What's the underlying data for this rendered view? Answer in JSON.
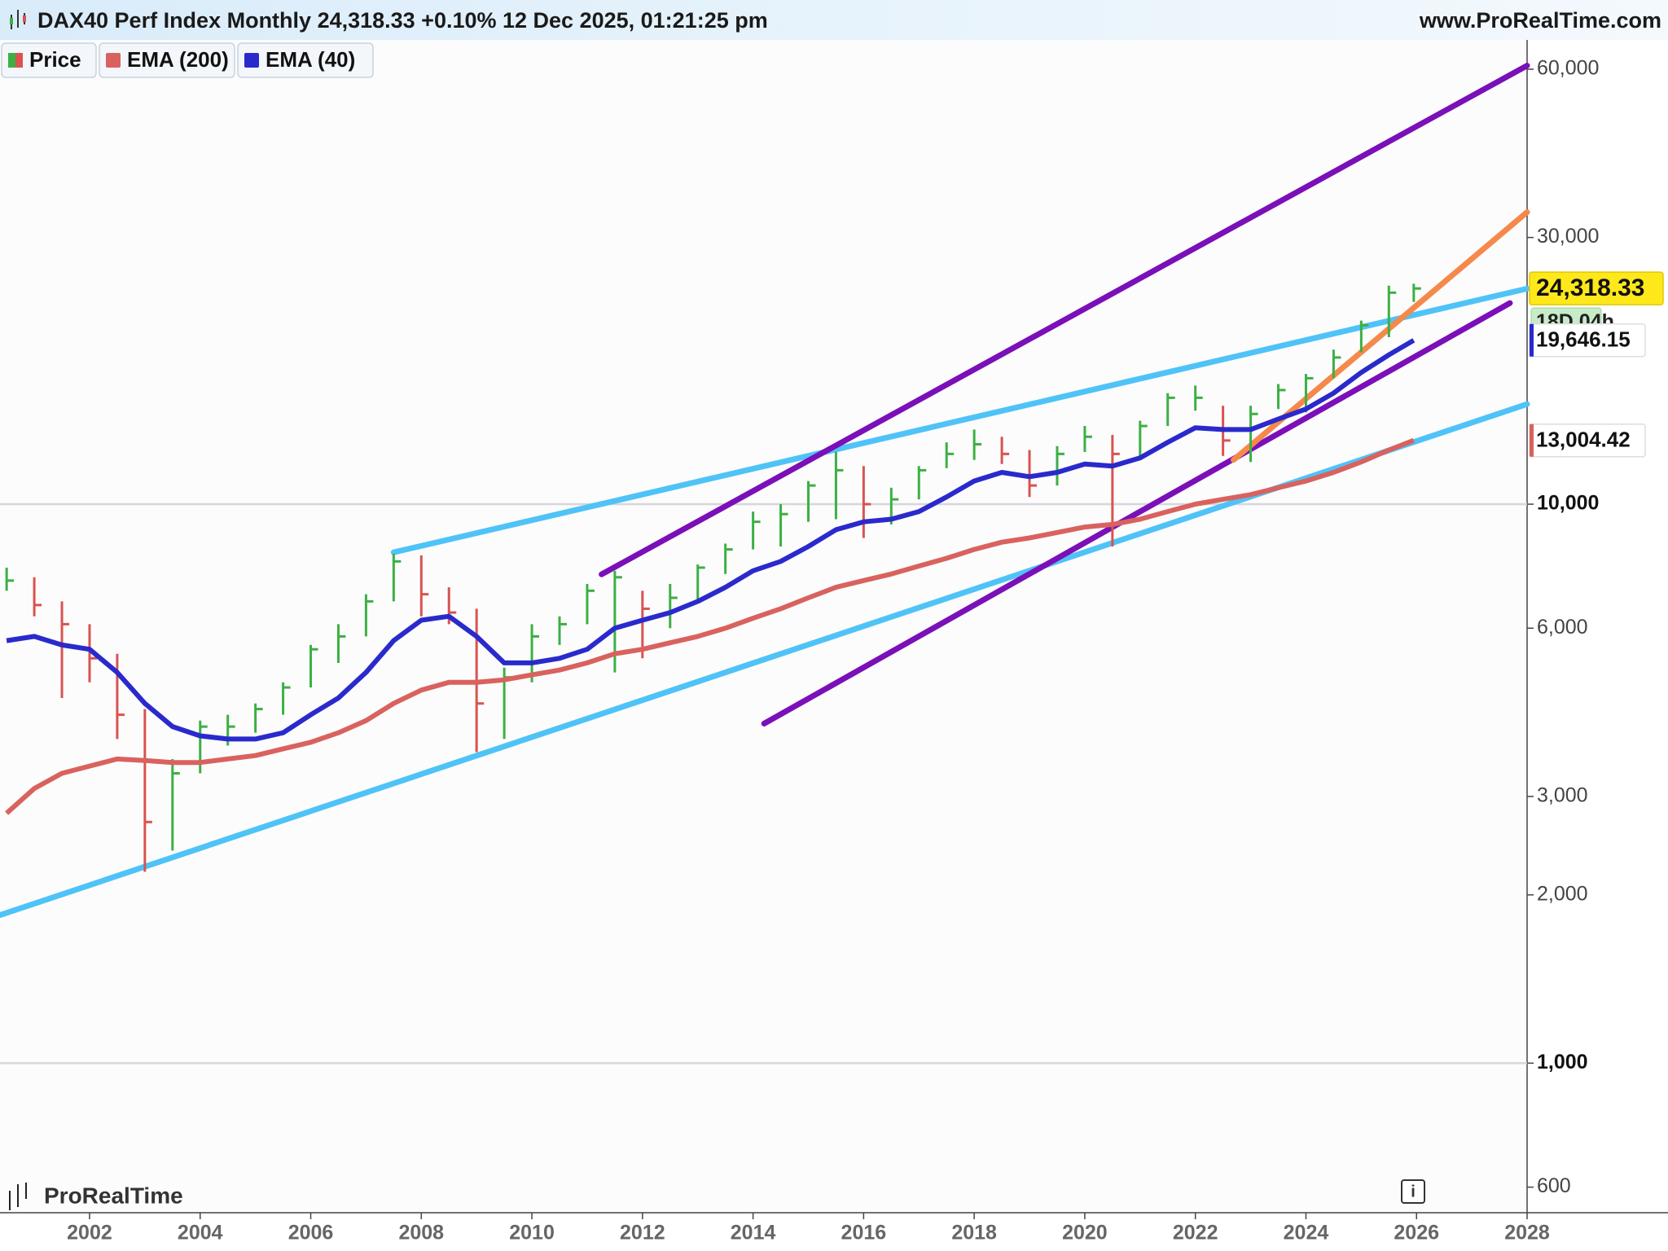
{
  "chart_data": {
    "type": "ohlc",
    "title": "DAX40 Perf Index Monthly 24,318.33 +0.10% 12 Dec 2025, 01:21:25 pm",
    "source": "www.ProRealTime.com",
    "watermark": "ProRealTime",
    "countdown": "18D 04h",
    "log_scale": true,
    "grid": true,
    "xlim": [
      2000.38,
      2028
    ],
    "xticks": [
      2002,
      2004,
      2006,
      2008,
      2010,
      2012,
      2014,
      2016,
      2018,
      2020,
      2022,
      2024,
      2026,
      2028
    ],
    "ylim": [
      540,
      67700
    ],
    "yticks": [
      {
        "value": 600,
        "label": "600"
      },
      {
        "value": 1000,
        "label": "1,000"
      },
      {
        "value": 2000,
        "label": "2,000"
      },
      {
        "value": 3000,
        "label": "3,000"
      },
      {
        "value": 6000,
        "label": "6,000"
      },
      {
        "value": 10000,
        "label": "10,000"
      },
      {
        "value": 30000,
        "label": "30,000"
      },
      {
        "value": 60000,
        "label": "60,000"
      }
    ],
    "x": [
      2000.5,
      2001.0,
      2001.5,
      2002.0,
      2002.5,
      2003.0,
      2003.5,
      2004.0,
      2004.5,
      2005.0,
      2005.5,
      2006.0,
      2006.5,
      2007.0,
      2007.5,
      2008.0,
      2008.5,
      2009.0,
      2009.5,
      2010.0,
      2010.5,
      2011.0,
      2011.5,
      2012.0,
      2012.5,
      2013.0,
      2013.5,
      2014.0,
      2014.5,
      2015.0,
      2015.5,
      2016.0,
      2016.5,
      2017.0,
      2017.5,
      2018.0,
      2018.5,
      2019.0,
      2019.5,
      2020.0,
      2020.5,
      2021.0,
      2021.5,
      2022.0,
      2022.5,
      2023.0,
      2023.5,
      2024.0,
      2024.5,
      2025.0,
      2025.5,
      2025.95
    ],
    "series": [
      {
        "name": "Price",
        "up_color": "#3cb043",
        "down_color": "#d9534f",
        "values": [
          7300,
          6600,
          6100,
          5300,
          4200,
          2700,
          3300,
          4000,
          4000,
          4300,
          4700,
          5500,
          5800,
          6700,
          7900,
          6900,
          6400,
          4400,
          4900,
          5800,
          6100,
          7000,
          7400,
          6500,
          6800,
          7700,
          8300,
          9300,
          9600,
          10800,
          11500,
          10000,
          10200,
          11500,
          12300,
          12800,
          12300,
          10800,
          12300,
          13200,
          12300,
          13800,
          15500,
          15500,
          13000,
          14500,
          16000,
          16800,
          18300,
          20900,
          23900,
          24318.33
        ],
        "high": [
          7700,
          7400,
          6700,
          6100,
          5400,
          4300,
          3500,
          4100,
          4200,
          4400,
          4800,
          5600,
          6100,
          6900,
          8150,
          8100,
          7100,
          6500,
          5100,
          6100,
          6300,
          7200,
          7600,
          7000,
          7200,
          7800,
          8500,
          9700,
          10000,
          11000,
          12400,
          11700,
          10700,
          11700,
          12900,
          13600,
          13200,
          12500,
          12700,
          13800,
          13300,
          14100,
          15800,
          16300,
          15000,
          15000,
          16400,
          17100,
          18900,
          21300,
          24600,
          24800
        ],
        "low": [
          7000,
          6300,
          4500,
          4800,
          3800,
          2200,
          2400,
          3300,
          3700,
          3900,
          4200,
          4700,
          5200,
          5800,
          6700,
          6300,
          6100,
          3600,
          3800,
          4800,
          5600,
          6100,
          5000,
          5300,
          6000,
          6700,
          7500,
          8300,
          8400,
          9300,
          9400,
          8700,
          9200,
          10200,
          11600,
          12000,
          11800,
          10300,
          10800,
          12400,
          8400,
          12000,
          13800,
          14700,
          12200,
          11900,
          14800,
          14600,
          16800,
          18700,
          19900,
          23000
        ],
        "last_label": {
          "value": 24318.33,
          "label": "24,318.33"
        },
        "label_color": "#ffe81a"
      },
      {
        "name": "EMA (200)",
        "color": "#d9625e",
        "values": [
          2800,
          3100,
          3300,
          3400,
          3500,
          3480,
          3450,
          3450,
          3500,
          3550,
          3650,
          3750,
          3900,
          4100,
          4400,
          4650,
          4800,
          4800,
          4850,
          4950,
          5050,
          5200,
          5400,
          5500,
          5650,
          5800,
          6000,
          6250,
          6500,
          6800,
          7100,
          7300,
          7500,
          7750,
          8000,
          8300,
          8550,
          8700,
          8900,
          9100,
          9200,
          9400,
          9700,
          10000,
          10200,
          10400,
          10700,
          11000,
          11400,
          11900,
          12500,
          13004.42
        ],
        "last_label": {
          "value": 13004.42,
          "label": "13,004.42"
        }
      },
      {
        "name": "EMA (40)",
        "color": "#2a2acc",
        "values": [
          5700,
          5800,
          5600,
          5500,
          5000,
          4400,
          4000,
          3850,
          3800,
          3800,
          3900,
          4200,
          4500,
          5000,
          5700,
          6200,
          6300,
          5800,
          5200,
          5200,
          5300,
          5500,
          6000,
          6200,
          6400,
          6700,
          7100,
          7600,
          7900,
          8400,
          9000,
          9300,
          9400,
          9700,
          10300,
          11000,
          11400,
          11200,
          11400,
          11800,
          11700,
          12100,
          12900,
          13700,
          13600,
          13600,
          14200,
          14800,
          15800,
          17200,
          18500,
          19646.15
        ],
        "last_label": {
          "value": 19646.15,
          "label": "19,646.15"
        }
      }
    ],
    "trendlines": [
      {
        "color": "#4fc3f7",
        "x": [
          2007.5,
          2028
        ],
        "y": [
          8200,
          24300
        ]
      },
      {
        "color": "#4fc3f7",
        "x": [
          2000.38,
          2028
        ],
        "y": [
          1840,
          15100
        ]
      },
      {
        "color": "#7b0fb8",
        "x": [
          2011.26,
          2028
        ],
        "y": [
          7490,
          60900
        ]
      },
      {
        "color": "#7b0fb8",
        "x": [
          2014.2,
          2027.69
        ],
        "y": [
          4050,
          22900
        ]
      },
      {
        "color": "#f5894b",
        "x": [
          2022.69,
          2028
        ],
        "y": [
          12000,
          33300
        ]
      }
    ]
  }
}
